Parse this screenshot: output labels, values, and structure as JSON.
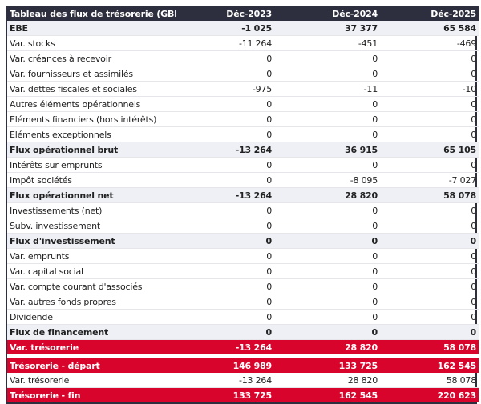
{
  "header": [
    "Tableau des flux de trésorerie (GBP)",
    "Déc-2023",
    "Déc-2024",
    "Déc-2025"
  ],
  "rows": [
    {
      "label": "EBE",
      "values": [
        "-1 025",
        "37 377",
        "65 584"
      ],
      "style": "bold"
    },
    {
      "label": "Var. stocks",
      "values": [
        "-11 264",
        "-451",
        "-469"
      ],
      "style": ""
    },
    {
      "label": "Var. créances à recevoir",
      "values": [
        "0",
        "0",
        "0"
      ],
      "style": ""
    },
    {
      "label": "Var. fournisseurs et assimilés",
      "values": [
        "0",
        "0",
        "0"
      ],
      "style": ""
    },
    {
      "label": "Var. dettes fiscales et sociales",
      "values": [
        "-975",
        "-11",
        "-10"
      ],
      "style": ""
    },
    {
      "label": "Autres éléments opérationnels",
      "values": [
        "0",
        "0",
        "0"
      ],
      "style": ""
    },
    {
      "label": "Eléments financiers (hors intérêts)",
      "values": [
        "0",
        "0",
        "0"
      ],
      "style": ""
    },
    {
      "label": "Eléments exceptionnels",
      "values": [
        "0",
        "0",
        "0"
      ],
      "style": ""
    },
    {
      "label": "Flux opérationnel brut",
      "values": [
        "-13 264",
        "36 915",
        "65 105"
      ],
      "style": "bold"
    },
    {
      "label": "Intérêts sur emprunts",
      "values": [
        "0",
        "0",
        "0"
      ],
      "style": ""
    },
    {
      "label": "Impôt sociétés",
      "values": [
        "0",
        "-8 095",
        "-7 027"
      ],
      "style": ""
    },
    {
      "label": "Flux opérationnel net",
      "values": [
        "-13 264",
        "28 820",
        "58 078"
      ],
      "style": "bold"
    },
    {
      "label": "Investissements (net)",
      "values": [
        "0",
        "0",
        "0"
      ],
      "style": ""
    },
    {
      "label": "Subv. investissement",
      "values": [
        "0",
        "0",
        "0"
      ],
      "style": ""
    },
    {
      "label": "Flux d'investissement",
      "values": [
        "0",
        "0",
        "0"
      ],
      "style": "bold"
    },
    {
      "label": "Var. emprunts",
      "values": [
        "0",
        "0",
        "0"
      ],
      "style": ""
    },
    {
      "label": "Var. capital social",
      "values": [
        "0",
        "0",
        "0"
      ],
      "style": ""
    },
    {
      "label": "Var. compte courant d'associés",
      "values": [
        "0",
        "0",
        "0"
      ],
      "style": ""
    },
    {
      "label": "Var. autres fonds propres",
      "values": [
        "0",
        "0",
        "0"
      ],
      "style": ""
    },
    {
      "label": "Dividende",
      "values": [
        "0",
        "0",
        "0"
      ],
      "style": ""
    },
    {
      "label": "Flux de financement",
      "values": [
        "0",
        "0",
        "0"
      ],
      "style": "bold"
    },
    {
      "label": "Var. trésorerie",
      "values": [
        "-13 264",
        "28 820",
        "58 078"
      ],
      "style": "red"
    },
    {
      "label": "",
      "values": [
        "",
        "",
        ""
      ],
      "style": "gap"
    },
    {
      "label": "Trésorerie - départ",
      "values": [
        "146 989",
        "133 725",
        "162 545"
      ],
      "style": "red"
    },
    {
      "label": "Var. trésorerie",
      "values": [
        "-13 264",
        "28 820",
        "58 078"
      ],
      "style": ""
    },
    {
      "label": "Trésorerie - fin",
      "values": [
        "133 725",
        "162 545",
        "220 623"
      ],
      "style": "red"
    }
  ],
  "colors": {
    "header": "#2d2f3e",
    "highlight": "#d9042b",
    "subtotal": "#eef0f5"
  }
}
